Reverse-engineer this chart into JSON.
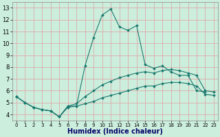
{
  "title": "",
  "xlabel": "Humidex (Indice chaleur)",
  "background_color": "#cceedd",
  "grid_color": "#ddaaaa",
  "line_color": "#1a7a6e",
  "xlim": [
    -0.5,
    23.5
  ],
  "ylim": [
    3.5,
    13.5
  ],
  "xticks": [
    0,
    1,
    2,
    3,
    4,
    5,
    6,
    7,
    8,
    9,
    10,
    11,
    12,
    13,
    14,
    15,
    16,
    17,
    18,
    19,
    20,
    21,
    22,
    23
  ],
  "yticks": [
    4,
    5,
    6,
    7,
    8,
    9,
    10,
    11,
    12,
    13
  ],
  "line1_x": [
    0,
    1,
    2,
    3,
    4,
    5,
    6,
    7,
    8,
    9,
    10,
    11,
    12,
    13,
    14,
    15,
    16,
    17,
    18,
    19,
    20,
    21,
    22
  ],
  "line1_y": [
    5.5,
    5.0,
    4.6,
    4.4,
    4.3,
    3.8,
    4.7,
    4.7,
    8.1,
    10.5,
    12.4,
    12.9,
    11.4,
    11.1,
    11.5,
    8.2,
    7.9,
    8.1,
    7.6,
    7.3,
    7.3,
    6.0,
    5.9
  ],
  "line2_x": [
    0,
    1,
    2,
    3,
    4,
    5,
    6,
    7,
    8,
    9,
    10,
    11,
    12,
    13,
    14,
    15,
    16,
    17,
    18,
    19,
    20,
    21,
    22,
    23
  ],
  "line2_y": [
    5.5,
    5.0,
    4.6,
    4.4,
    4.3,
    3.8,
    4.7,
    4.9,
    5.5,
    6.0,
    6.5,
    6.8,
    7.1,
    7.3,
    7.5,
    7.6,
    7.5,
    7.7,
    7.8,
    7.7,
    7.5,
    7.3,
    6.0,
    5.9
  ],
  "line3_x": [
    0,
    1,
    2,
    3,
    4,
    5,
    6,
    7,
    8,
    9,
    10,
    11,
    12,
    13,
    14,
    15,
    16,
    17,
    18,
    19,
    20,
    21,
    22,
    23
  ],
  "line3_y": [
    5.5,
    5.0,
    4.6,
    4.4,
    4.3,
    3.8,
    4.6,
    4.7,
    4.9,
    5.1,
    5.4,
    5.6,
    5.8,
    6.0,
    6.2,
    6.4,
    6.4,
    6.6,
    6.7,
    6.7,
    6.6,
    6.4,
    5.7,
    5.6
  ],
  "xlabel_color": "#000066",
  "xlabel_fontsize": 7,
  "tick_fontsize": 6,
  "marker": "D",
  "markersize": 2,
  "linewidth": 0.8
}
